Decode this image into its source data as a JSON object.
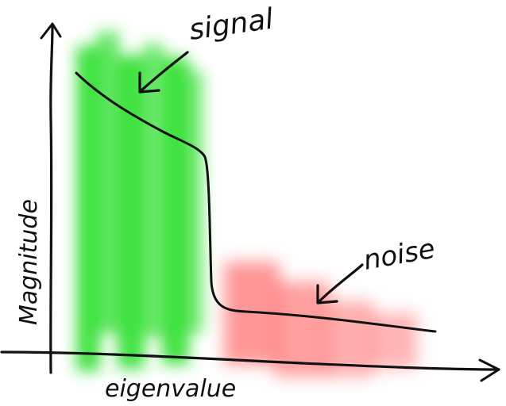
{
  "annotations": {
    "signal_label": "signal",
    "noise_label": "noise"
  },
  "axes": {
    "xlabel": "eigenvalue",
    "ylabel": "Magnitude"
  },
  "regions": {
    "signal_color": "#22dd22",
    "noise_color": "#ff6b6b"
  },
  "colors": {
    "ink": "#111111",
    "background": "#ffffff"
  },
  "icons": [
    "arrow-pointing-to-signal-icon",
    "arrow-pointing-to-noise-icon",
    "axis-arrowhead-icon"
  ]
}
